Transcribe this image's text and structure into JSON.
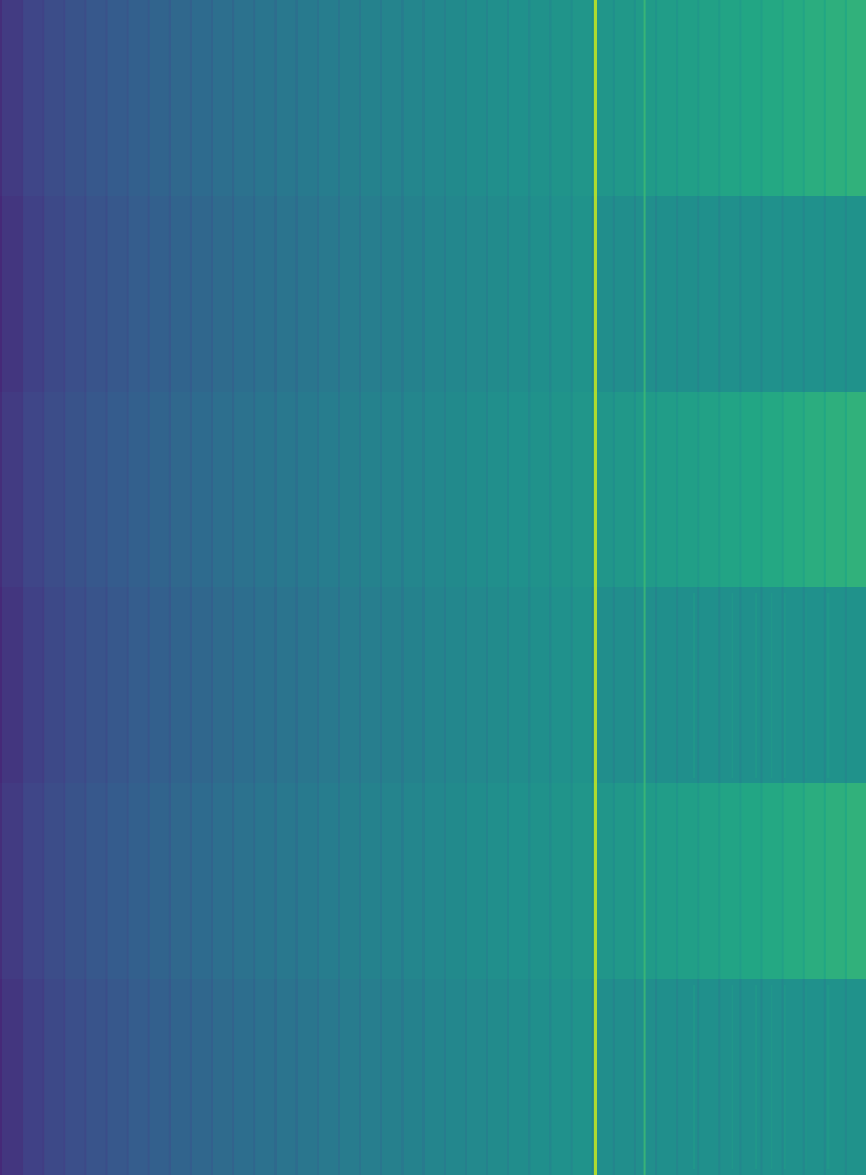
{
  "chart_data": {
    "type": "heatmap",
    "title": "",
    "xlabel": "",
    "ylabel": "",
    "colormap": "viridis",
    "grid": false,
    "legend": "none",
    "column_stripe_count": 41,
    "row_bands": [
      {
        "index": 1,
        "variant": "bright"
      },
      {
        "index": 2,
        "variant": "muted"
      },
      {
        "index": 3,
        "variant": "bright"
      },
      {
        "index": 4,
        "variant": "muted-noisy"
      },
      {
        "index": 5,
        "variant": "bright"
      },
      {
        "index": 6,
        "variant": "muted-noisy"
      }
    ],
    "highlight_columns": [
      {
        "name": "spike",
        "position": 0.6875,
        "value": 0.88,
        "color": "#b5de2b"
      },
      {
        "name": "minor-spike",
        "position": 0.744,
        "value": 0.56,
        "color": "#3fbc73"
      }
    ],
    "colors": {
      "low": "#482475",
      "mid": "#2a788e",
      "high": "#2ab07f",
      "peak": "#b5de2b"
    }
  }
}
